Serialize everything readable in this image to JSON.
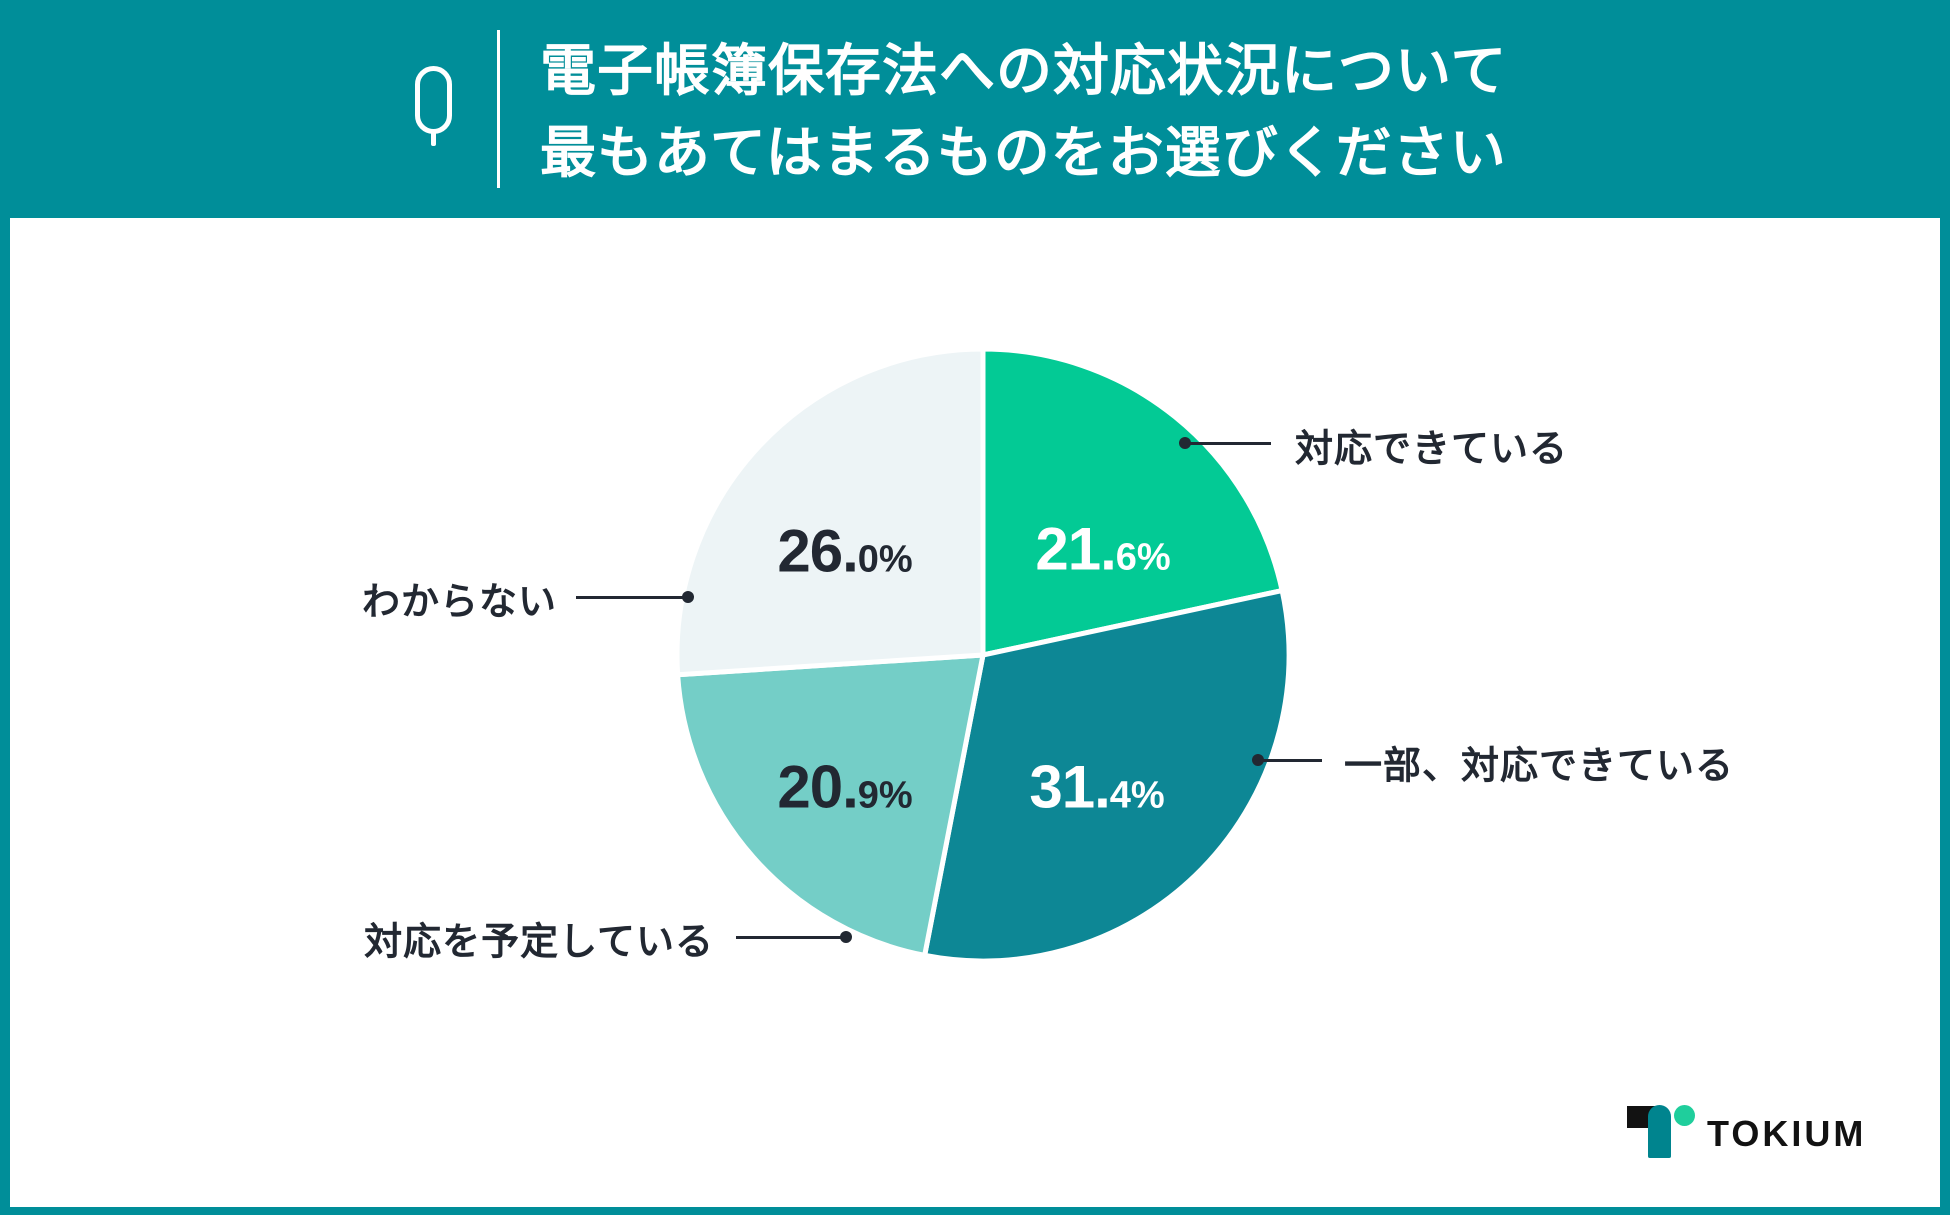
{
  "header": {
    "icon": "question-q-icon",
    "title_line1": "電子帳簿保存法への対応状況について",
    "title_line2": "最もあてはまるものをお選びください"
  },
  "chart_data": {
    "type": "pie",
    "title": "電子帳簿保存法への対応状況について最もあてはまるものをお選びください",
    "categories": [
      "対応できている",
      "一部、対応できている",
      "対応を予定している",
      "わからない"
    ],
    "values": [
      21.6,
      31.4,
      20.9,
      26.0
    ],
    "unit": "%",
    "colors": [
      "#03CA95",
      "#0D8795",
      "#74CEC7",
      "#EDF4F6"
    ],
    "value_label_colors": [
      "#FFFFFF",
      "#FFFFFF",
      "#222832",
      "#222832"
    ],
    "start_angle": "12-oclock-clockwise",
    "slice_border_color": "#FFFFFF",
    "legend_position": "callout-labels"
  },
  "branding": {
    "logo_text": "TOKIUM",
    "logo_mark": "tokium-t-mark-icon"
  },
  "colors": {
    "header_teal": "#008E99",
    "panel_white": "#FFFFFF",
    "callout_dark": "#222832",
    "logo_teal": "#00848E",
    "logo_green": "#1FCE9C",
    "logo_black": "#121212"
  }
}
